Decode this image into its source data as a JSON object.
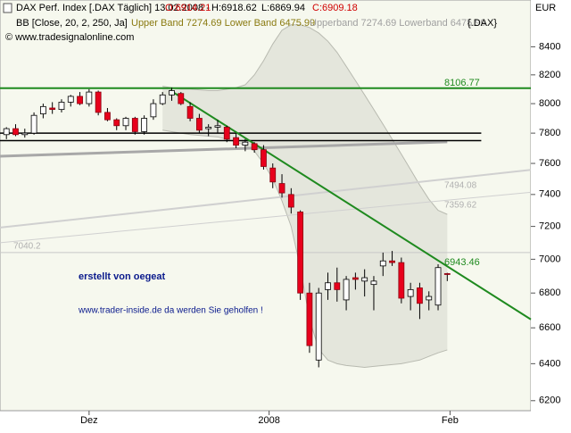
{
  "chart_data": {
    "type": "candlestick",
    "title": "DAX Perf. Index [.DAX  Täglich] 13.02.2008 -",
    "quote": [
      "O:6914.21",
      "H:6918.62",
      "L:6869.94",
      "C:6909.18"
    ],
    "currency": "EUR",
    "indicator": "BB [Close, 20, 2, 250, Ja]",
    "indicator_bands": "Upper Band 7274.69 Lower Band 6475.99",
    "indicator_bands_gray": "Upperband 7274.69 Lowerband 6475.99",
    "indicator_symbol": "{.DAX}",
    "copyright": "© www.tradesignalonline.com",
    "log_scale": true,
    "ylim": [
      6147,
      8744
    ],
    "yticks": [
      6200,
      6400,
      6600,
      6800,
      7000,
      7200,
      7400,
      7600,
      7800,
      8000,
      8200,
      8400
    ],
    "xlim": [
      -0.7,
      57.1
    ],
    "xticks": [
      {
        "value": 9,
        "label": "Dez"
      },
      {
        "value": 28.6,
        "label": "2008"
      },
      {
        "value": 48.3,
        "label": "Feb"
      }
    ],
    "up_color": "#ffffff",
    "down_color": "#e8001c",
    "open": [
      7790,
      7830,
      7790,
      7800,
      7930,
      7970,
      7960,
      8010,
      8050,
      8000,
      8080,
      7940,
      7890,
      7850,
      7900,
      7810,
      7910,
      8000,
      8060,
      8070,
      7980,
      7900,
      7830,
      7840,
      7840,
      7770,
      7720,
      7730,
      7690,
      7570,
      7470,
      7400,
      7290,
      6800,
      6420,
      6820,
      6860,
      6760,
      6890,
      6870,
      6850,
      6960,
      6990,
      6980,
      6780,
      6830,
      6760,
      6730,
      6914.21
    ],
    "high": [
      7840,
      7860,
      7830,
      7940,
      8000,
      8010,
      8030,
      8060,
      8080,
      8100,
      8090,
      7970,
      7900,
      7910,
      7910,
      7920,
      8030,
      8080,
      8110,
      8080,
      8010,
      7930,
      7860,
      7890,
      7850,
      7800,
      7760,
      7740,
      7720,
      7600,
      7530,
      7440,
      7300,
      6860,
      6830,
      6920,
      6950,
      6900,
      6920,
      6940,
      6900,
      7040,
      7050,
      7010,
      6860,
      6860,
      6810,
      6970,
      6918.62
    ],
    "low": [
      7760,
      7780,
      7770,
      7790,
      7900,
      7930,
      7940,
      7980,
      7990,
      7980,
      7920,
      7880,
      7820,
      7820,
      7790,
      7790,
      7890,
      7990,
      8020,
      7990,
      7880,
      7800,
      7780,
      7800,
      7740,
      7700,
      7680,
      7670,
      7560,
      7440,
      7380,
      7280,
      6760,
      6460,
      6380,
      6760,
      6750,
      6700,
      6820,
      6780,
      6700,
      6900,
      6960,
      6740,
      6700,
      6650,
      6700,
      6700,
      6869.94
    ],
    "close": [
      7830,
      7790,
      7800,
      7920,
      7980,
      7960,
      8010,
      8050,
      8000,
      8080,
      7940,
      7890,
      7850,
      7900,
      7810,
      7900,
      8000,
      8060,
      8090,
      8000,
      7900,
      7820,
      7840,
      7850,
      7760,
      7720,
      7740,
      7690,
      7580,
      7480,
      7410,
      7320,
      6800,
      6500,
      6800,
      6860,
      6820,
      6880,
      6880,
      6890,
      6870,
      6990,
      6980,
      6770,
      6820,
      6740,
      6780,
      6950,
      6909.18
    ],
    "bands": {
      "color": "#b8bab0",
      "fill": "#e4e6dc",
      "upper": [
        null,
        null,
        null,
        null,
        null,
        null,
        null,
        null,
        null,
        null,
        null,
        null,
        null,
        null,
        null,
        null,
        null,
        8120,
        8110,
        8100,
        8100,
        8095,
        8090,
        8090,
        8100,
        8110,
        8130,
        8200,
        8300,
        8420,
        8520,
        8560,
        8560,
        8540,
        8500,
        8440,
        8360,
        8260,
        8160,
        8060,
        7960,
        7860,
        7760,
        7660,
        7560,
        7460,
        7370,
        7300,
        7274.69
      ],
      "lower": [
        null,
        null,
        null,
        null,
        null,
        null,
        null,
        null,
        null,
        null,
        null,
        null,
        null,
        null,
        null,
        null,
        null,
        7820,
        7810,
        7800,
        7790,
        7785,
        7780,
        7775,
        7760,
        7740,
        7720,
        7680,
        7600,
        7500,
        7360,
        7200,
        6950,
        6650,
        6480,
        6420,
        6400,
        6390,
        6385,
        6380,
        6385,
        6390,
        6395,
        6400,
        6410,
        6420,
        6440,
        6460,
        6475.99
      ]
    },
    "lines": [
      {
        "x": [
          -0.7,
          48
        ],
        "y": [
          7647,
          7742
        ],
        "color": "#a8a8a8",
        "width": 3
      },
      {
        "x": [
          -0.7,
          57.1
        ],
        "y": [
          7193,
          7558
        ],
        "color": "#d0d0d0",
        "width": 2
      },
      {
        "x": [
          -0.7,
          57.1
        ],
        "y": [
          7100,
          7414
        ],
        "color": "#d0d0d0",
        "width": 1
      },
      {
        "x": [
          -0.7,
          57.1
        ],
        "y": [
          7040.2,
          7040.2
        ],
        "color": "#c8c8c8",
        "width": 1
      },
      {
        "x": [
          -0.7,
          51.7
        ],
        "y": [
          7800,
          7800
        ],
        "color": "#000000",
        "width": 1.5
      },
      {
        "x": [
          -0.7,
          51.7
        ],
        "y": [
          7750,
          7750
        ],
        "color": "#000000",
        "width": 1.5
      },
      {
        "x": [
          -0.7,
          57.1
        ],
        "y": [
          8106.77,
          8106.77
        ],
        "color": "#1f8a1f",
        "width": 2
      },
      {
        "x": [
          17.8,
          57.1
        ],
        "y": [
          8093,
          6648
        ],
        "color": "#1f8a1f",
        "width": 2
      }
    ],
    "annotations": [
      {
        "text": "8106.77",
        "color": "#1f8a1f"
      },
      {
        "text": "7494.08",
        "color": "#b0b0b0"
      },
      {
        "text": "7359.62",
        "color": "#b0b0b0"
      },
      {
        "text": "7040.2",
        "color": "#b0b0b0"
      },
      {
        "text": "6943.46",
        "color": "#1f8a1f"
      },
      {
        "text": "erstellt von oegeat",
        "color": "#0a1a8c"
      },
      {
        "text": "www.trader-inside.de da werden Sie geholfen !",
        "color": "#0a1a8c"
      }
    ]
  }
}
